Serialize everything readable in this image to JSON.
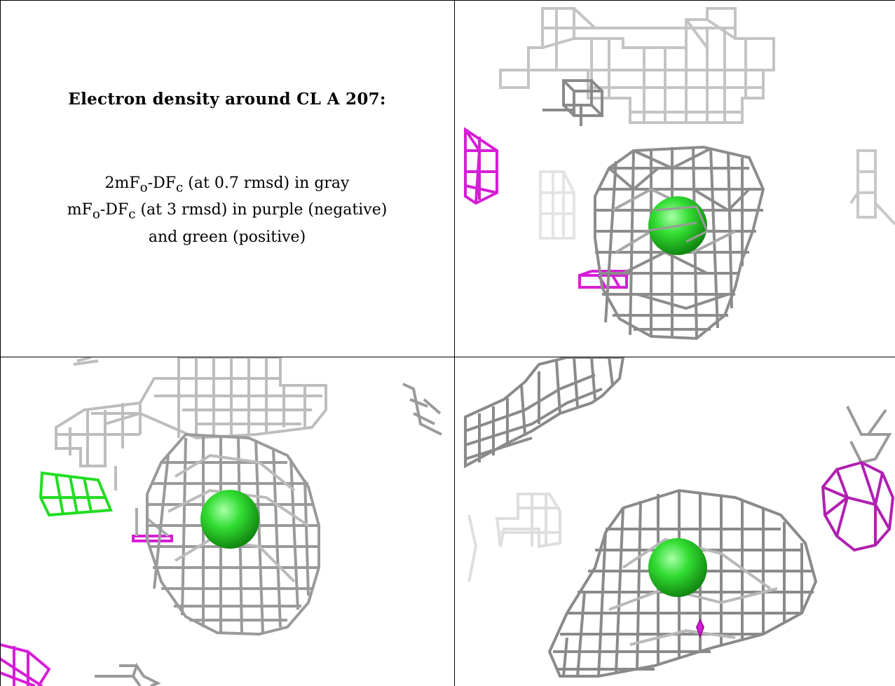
{
  "caption": {
    "title": "Electron density around CL A 207:",
    "line1": {
      "a": "2mF",
      "sub1": "o",
      "b": "-DF",
      "sub2": "c",
      "c": " (at 0.7 rmsd) in gray"
    },
    "line2": {
      "a": "mF",
      "sub1": "o",
      "b": "-DF",
      "sub2": "c",
      "c": " (at 3 rmsd) in purple (negative)"
    },
    "line3": "and green (positive)"
  },
  "colors": {
    "gray_mesh": "#8a8a8a",
    "light_mesh": "#c8c8c8",
    "purple_mesh": "#d61ed6",
    "green_mesh": "#22dd22",
    "atom": "#33dd33",
    "border": "#000000"
  },
  "panels": [
    {
      "name": "caption-panel"
    },
    {
      "name": "density-view-1"
    },
    {
      "name": "density-view-2"
    },
    {
      "name": "density-view-3"
    }
  ]
}
